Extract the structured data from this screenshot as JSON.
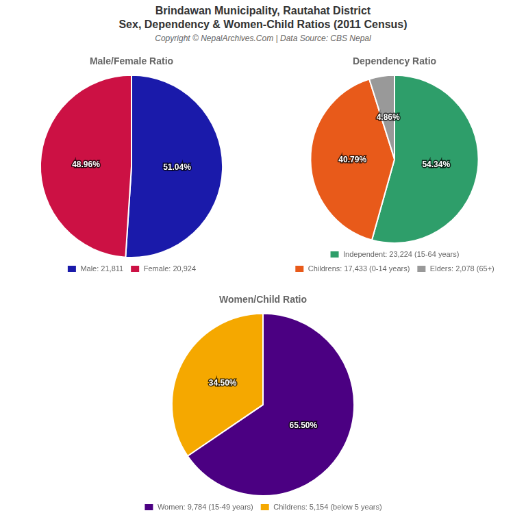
{
  "title": [
    "Brindawan Municipality, Rautahat District",
    "Sex, Dependency & Women-Child Ratios (2011 Census)"
  ],
  "subtitle": "Copyright © NepalArchives.Com | Data Source: CBS Nepal",
  "chart_data": [
    {
      "type": "pie",
      "title": "Male/Female Ratio",
      "categories": [
        "Male: 21,811",
        "Female: 20,924"
      ],
      "values": [
        51.04,
        48.96
      ],
      "value_labels": [
        "51.04%",
        "48.96%"
      ],
      "colors": [
        "#1a1aaa",
        "#cc1144"
      ],
      "data_labels": true,
      "legend": "bottom"
    },
    {
      "type": "pie",
      "title": "Dependency Ratio",
      "categories": [
        "Independent: 23,224 (15-64 years)",
        "Childrens: 17,433 (0-14 years)",
        "Elders: 2,078 (65+)"
      ],
      "values": [
        54.34,
        40.79,
        4.86
      ],
      "value_labels": [
        "54.34%",
        "40.79%",
        "4.86%"
      ],
      "colors": [
        "#2e9e6a",
        "#e85a1a",
        "#999999"
      ],
      "data_labels": true,
      "legend": "bottom"
    },
    {
      "type": "pie",
      "title": "Women/Child Ratio",
      "categories": [
        "Women: 9,784 (15-49 years)",
        "Childrens: 5,154 (below 5 years)"
      ],
      "values": [
        65.5,
        34.5
      ],
      "value_labels": [
        "65.50%",
        "34.50%"
      ],
      "colors": [
        "#4b0082",
        "#f5a800"
      ],
      "data_labels": true,
      "legend": "bottom"
    }
  ]
}
